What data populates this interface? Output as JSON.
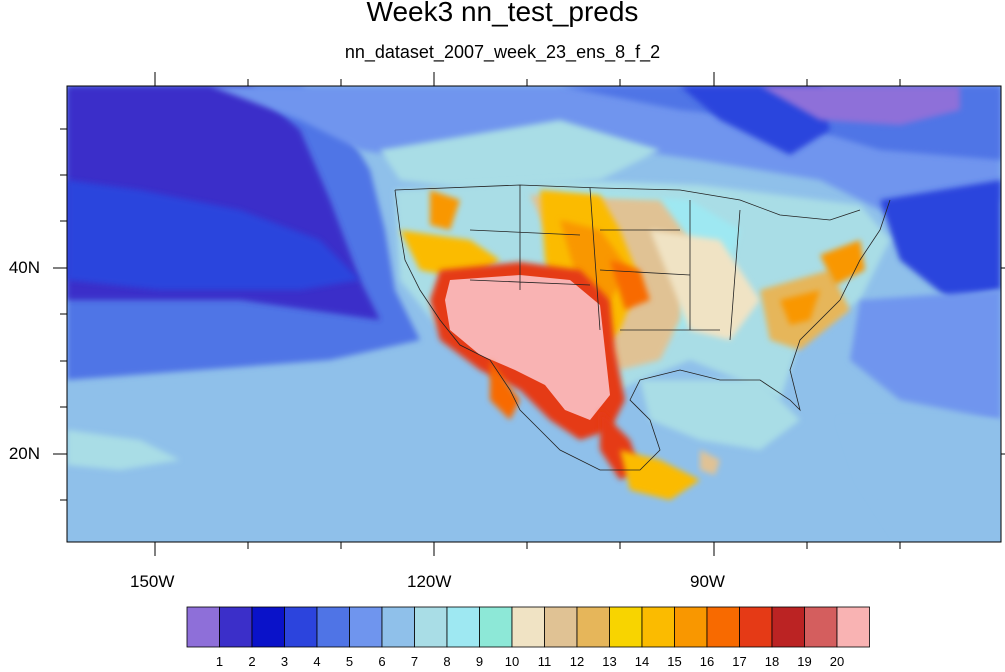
{
  "title": "Week3 nn_test_preds",
  "subtitle": "nn_dataset_2007_week_23_ens_8_f_2",
  "axes": {
    "x_ticks": [
      "150W",
      "120W",
      "90W"
    ],
    "y_ticks": [
      "40N",
      "20N"
    ]
  },
  "colorbar": {
    "labels": [
      "1",
      "2",
      "3",
      "4",
      "5",
      "6",
      "7",
      "8",
      "9",
      "10",
      "11",
      "12",
      "13",
      "14",
      "15",
      "16",
      "17",
      "18",
      "19",
      "20"
    ],
    "colors": [
      "#8e6fd9",
      "#3b2fc9",
      "#0a12c9",
      "#2c44dd",
      "#4f74e6",
      "#6f95ee",
      "#8fc0ea",
      "#a9dde6",
      "#9ee8f2",
      "#8de8d7",
      "#f0e3c4",
      "#e0c294",
      "#e6b65a",
      "#f8d400",
      "#fbbb00",
      "#f99700",
      "#f86a00",
      "#e53a16",
      "#bb2323",
      "#d45e5e",
      "#f9b3b3"
    ]
  }
}
